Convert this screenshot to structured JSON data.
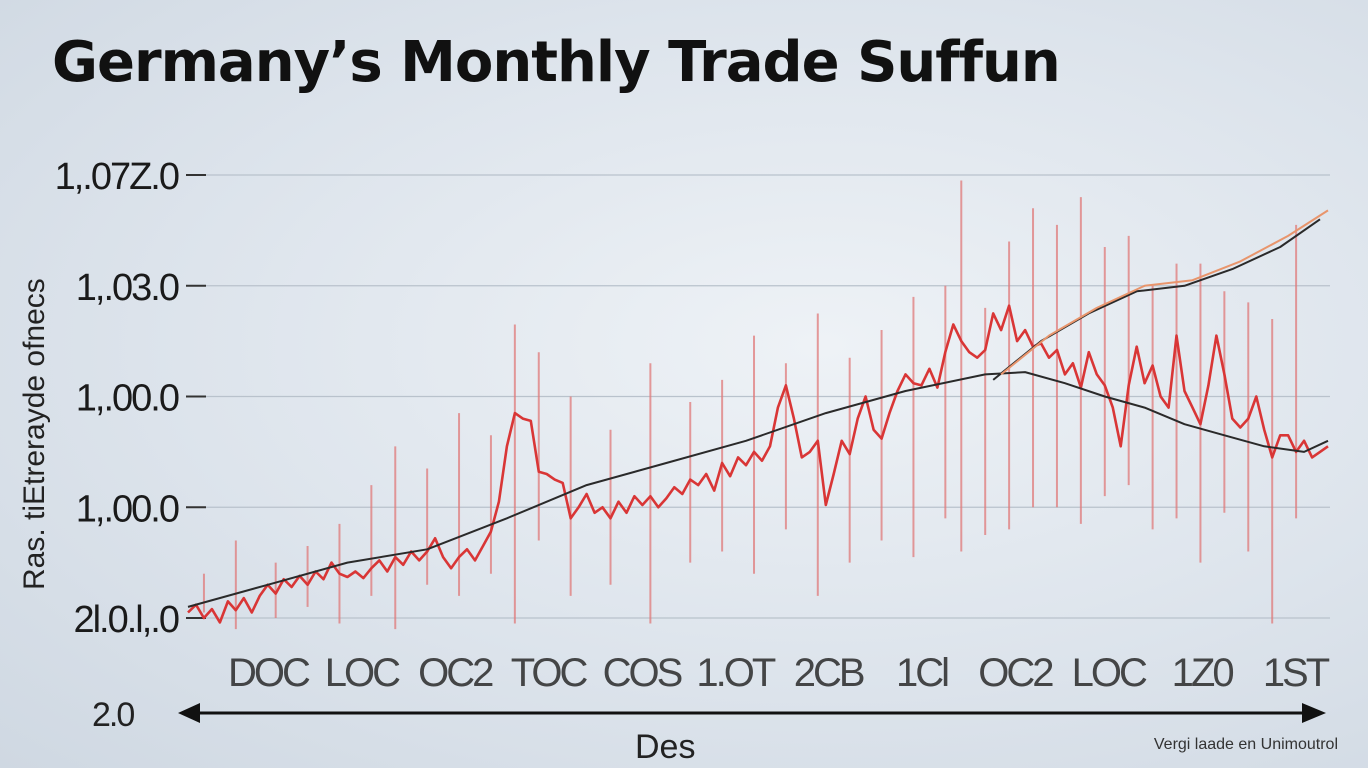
{
  "chart_data": {
    "type": "line",
    "title": "Germany’s Monthly Trade Suffun",
    "ylabel": "Ras. tiEtrerayde ofnecs",
    "xlabel": "Des",
    "source": "Vergi laade en Unimoutrol",
    "x_axis_start_label": "2.0",
    "y_ticks": [
      {
        "label": "1,.07Z.0",
        "value": 5
      },
      {
        "label": "1,.03.0",
        "value": 4
      },
      {
        "label": "1,.00.0",
        "value": 3
      },
      {
        "label": "1,.00.0",
        "value": 2
      },
      {
        "label": "2l.0.l,.0",
        "value": 1
      }
    ],
    "x_tick_labels": [
      "DOC",
      "LOC",
      "OC2",
      "TOC",
      "COS",
      "1.OT",
      "2CB",
      "1Cl",
      "OC2",
      "LOC",
      "1Z0",
      "1ST"
    ],
    "ylim": [
      1,
      5
    ],
    "grid": true,
    "legend": "none",
    "colors": {
      "volatile": "#d93636",
      "trend": "#2a2a2a",
      "forecast": "#e8956c",
      "spikes": "#e07a7a"
    },
    "series": [
      {
        "key": "volatile",
        "x": [
          0,
          1,
          2,
          3,
          4,
          5,
          6,
          7,
          8,
          9,
          10,
          11,
          12,
          13,
          14,
          15,
          16,
          17,
          18,
          19,
          20,
          21,
          22,
          23,
          24,
          25,
          26,
          27,
          28,
          29,
          30,
          31,
          32,
          33,
          34,
          35,
          36,
          37,
          38,
          39,
          40,
          41,
          42,
          43,
          44,
          45,
          46,
          47,
          48,
          49,
          50,
          51,
          52,
          53,
          54,
          55,
          56,
          57,
          58,
          59,
          60,
          61,
          62,
          63,
          64,
          65,
          66,
          67,
          68,
          69,
          70,
          71,
          72,
          73,
          74,
          75,
          76,
          77,
          78,
          79,
          80,
          81,
          82,
          83,
          84,
          85,
          86,
          87,
          88,
          89,
          90,
          91,
          92,
          93,
          94,
          95,
          96,
          97,
          98,
          99,
          100,
          101,
          102,
          103,
          104,
          105,
          106,
          107,
          108,
          109,
          110,
          111,
          112,
          113,
          114,
          115,
          116,
          117,
          118,
          119,
          120,
          121,
          122,
          123,
          124,
          125,
          126,
          127,
          128,
          129,
          130,
          131,
          132,
          133,
          134,
          135,
          136,
          137,
          138,
          139,
          140,
          141,
          142,
          143
        ],
        "values": [
          1.05,
          1.12,
          1.0,
          1.08,
          0.96,
          1.15,
          1.07,
          1.18,
          1.05,
          1.2,
          1.3,
          1.22,
          1.35,
          1.28,
          1.38,
          1.3,
          1.42,
          1.35,
          1.5,
          1.4,
          1.37,
          1.42,
          1.36,
          1.45,
          1.52,
          1.42,
          1.55,
          1.48,
          1.6,
          1.52,
          1.6,
          1.72,
          1.55,
          1.45,
          1.55,
          1.62,
          1.52,
          1.65,
          1.78,
          2.05,
          2.55,
          2.85,
          2.8,
          2.78,
          2.32,
          2.3,
          2.25,
          2.22,
          1.9,
          2.0,
          2.12,
          1.95,
          2.0,
          1.9,
          2.05,
          1.95,
          2.1,
          2.02,
          2.1,
          2.0,
          2.08,
          2.18,
          2.12,
          2.25,
          2.2,
          2.3,
          2.15,
          2.4,
          2.28,
          2.45,
          2.38,
          2.5,
          2.42,
          2.55,
          2.9,
          3.1,
          2.8,
          2.45,
          2.5,
          2.6,
          2.02,
          2.3,
          2.6,
          2.48,
          2.8,
          3.0,
          2.7,
          2.62,
          2.85,
          3.05,
          3.2,
          3.12,
          3.1,
          3.25,
          3.08,
          3.4,
          3.65,
          3.5,
          3.4,
          3.35,
          3.42,
          3.75,
          3.6,
          3.82,
          3.5,
          3.6,
          3.45,
          3.48,
          3.35,
          3.42,
          3.2,
          3.3,
          3.08,
          3.4,
          3.2,
          3.1,
          2.9,
          2.55,
          3.1,
          3.45,
          3.12,
          3.28,
          3.0,
          2.9,
          3.55,
          3.05,
          2.9,
          2.75,
          3.1,
          3.55,
          3.2,
          2.8,
          2.72,
          2.8,
          3.0,
          2.7,
          2.45,
          2.65,
          2.65,
          2.5,
          2.6,
          2.45,
          2.5,
          2.55
        ]
      },
      {
        "key": "trend",
        "x": [
          0,
          10,
          20,
          30,
          40,
          50,
          60,
          70,
          80,
          90,
          100,
          105,
          110,
          115,
          120,
          125,
          130,
          135,
          140,
          143
        ],
        "values": [
          1.1,
          1.3,
          1.5,
          1.62,
          1.9,
          2.2,
          2.4,
          2.6,
          2.85,
          3.05,
          3.2,
          3.22,
          3.12,
          3.0,
          2.9,
          2.75,
          2.65,
          2.55,
          2.5,
          2.6
        ]
      },
      {
        "key": "trend-upper",
        "x": [
          101,
          107,
          113,
          119,
          125,
          131,
          137,
          142
        ],
        "values": [
          3.15,
          3.5,
          3.75,
          3.95,
          4.0,
          4.15,
          4.35,
          4.6
        ]
      },
      {
        "key": "forecast",
        "x": [
          102,
          108,
          114,
          120,
          126,
          132,
          138,
          143
        ],
        "values": [
          3.2,
          3.55,
          3.8,
          4.0,
          4.05,
          4.22,
          4.45,
          4.68
        ]
      }
    ],
    "spikes": [
      {
        "x": 2,
        "low": 1.05,
        "high": 1.4
      },
      {
        "x": 6,
        "low": 0.9,
        "high": 1.7
      },
      {
        "x": 11,
        "low": 1.0,
        "high": 1.5
      },
      {
        "x": 15,
        "low": 1.1,
        "high": 1.65
      },
      {
        "x": 19,
        "low": 0.95,
        "high": 1.85
      },
      {
        "x": 23,
        "low": 1.2,
        "high": 2.2
      },
      {
        "x": 26,
        "low": 0.9,
        "high": 2.55
      },
      {
        "x": 30,
        "low": 1.3,
        "high": 2.35
      },
      {
        "x": 34,
        "low": 1.2,
        "high": 2.85
      },
      {
        "x": 38,
        "low": 1.4,
        "high": 2.65
      },
      {
        "x": 41,
        "low": 0.95,
        "high": 3.65
      },
      {
        "x": 44,
        "low": 1.7,
        "high": 3.4
      },
      {
        "x": 48,
        "low": 1.2,
        "high": 3.0
      },
      {
        "x": 53,
        "low": 1.3,
        "high": 2.7
      },
      {
        "x": 58,
        "low": 0.95,
        "high": 3.3
      },
      {
        "x": 63,
        "low": 1.5,
        "high": 2.95
      },
      {
        "x": 67,
        "low": 1.6,
        "high": 3.15
      },
      {
        "x": 71,
        "low": 1.4,
        "high": 3.55
      },
      {
        "x": 75,
        "low": 1.8,
        "high": 3.3
      },
      {
        "x": 79,
        "low": 1.2,
        "high": 3.75
      },
      {
        "x": 83,
        "low": 1.5,
        "high": 3.35
      },
      {
        "x": 87,
        "low": 1.7,
        "high": 3.6
      },
      {
        "x": 91,
        "low": 1.55,
        "high": 3.9
      },
      {
        "x": 95,
        "low": 1.9,
        "high": 4.0
      },
      {
        "x": 97,
        "low": 1.6,
        "high": 4.95
      },
      {
        "x": 100,
        "low": 1.75,
        "high": 3.8
      },
      {
        "x": 103,
        "low": 1.8,
        "high": 4.4
      },
      {
        "x": 106,
        "low": 2.0,
        "high": 4.7
      },
      {
        "x": 109,
        "low": 2.0,
        "high": 4.55
      },
      {
        "x": 112,
        "low": 1.85,
        "high": 4.8
      },
      {
        "x": 115,
        "low": 2.1,
        "high": 4.35
      },
      {
        "x": 118,
        "low": 2.2,
        "high": 4.45
      },
      {
        "x": 121,
        "low": 1.8,
        "high": 4.0
      },
      {
        "x": 124,
        "low": 1.9,
        "high": 4.2
      },
      {
        "x": 127,
        "low": 1.5,
        "high": 4.2
      },
      {
        "x": 130,
        "low": 1.95,
        "high": 3.95
      },
      {
        "x": 133,
        "low": 1.6,
        "high": 3.85
      },
      {
        "x": 136,
        "low": 0.95,
        "high": 3.7
      },
      {
        "x": 139,
        "low": 1.9,
        "high": 4.55
      }
    ]
  }
}
